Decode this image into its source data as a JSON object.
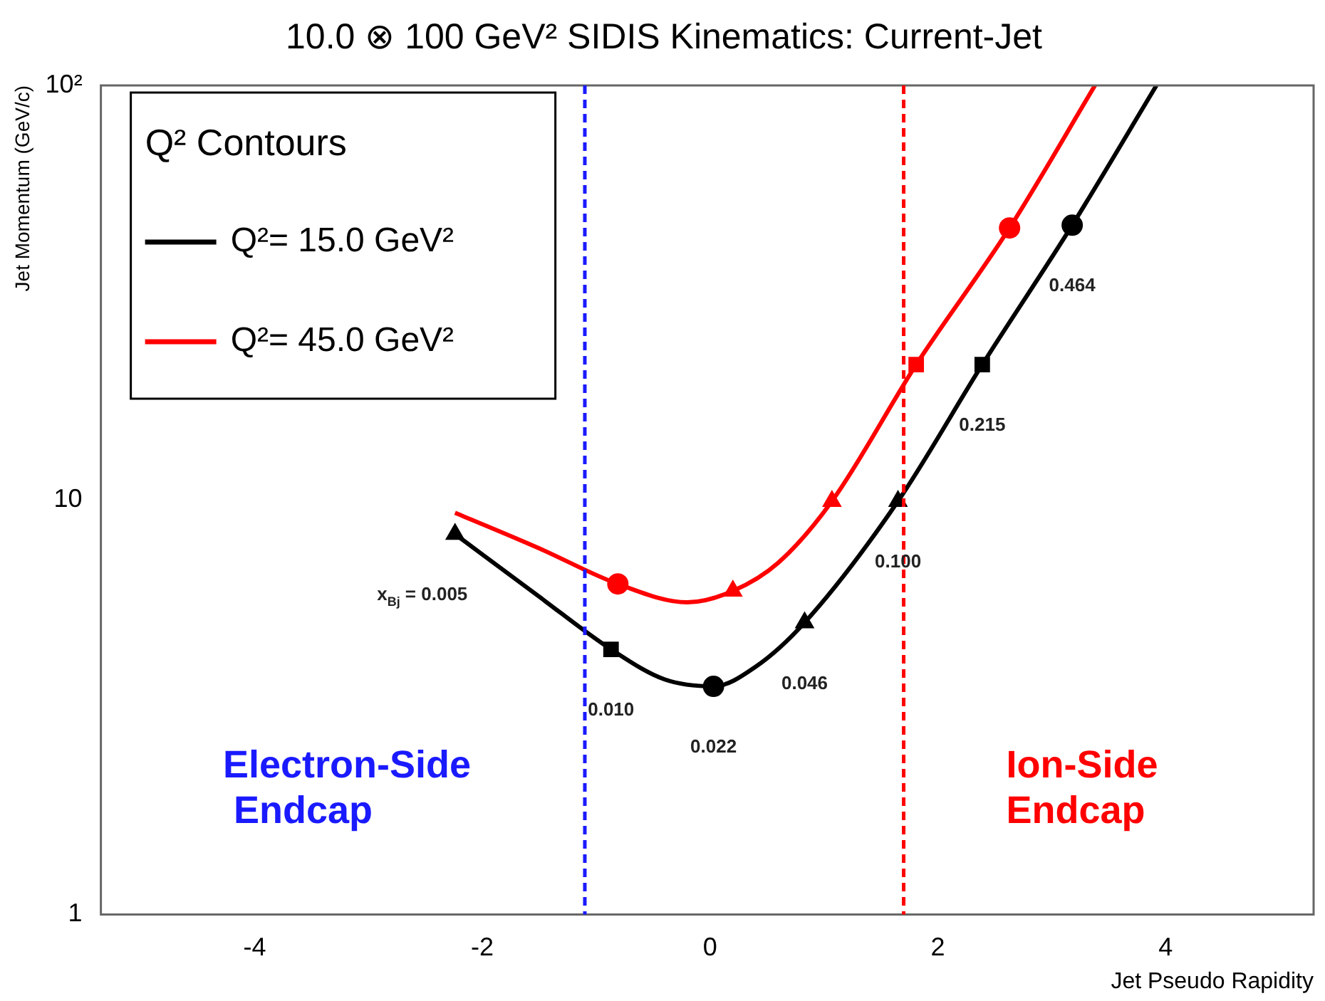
{
  "chart_data": {
    "type": "line",
    "title": "10.0 ⊗ 100 GeV² SIDIS Kinematics: Current-Jet",
    "xlabel": "Jet Pseudo Rapidity",
    "ylabel": "Jet Momentum (GeV/c)",
    "legend_title": "Q² Contours",
    "legend": "top left",
    "grid": false,
    "log": "y",
    "xlim": [
      -5.35,
      5.3
    ],
    "xticks": [
      -4,
      -2,
      0,
      2,
      4
    ],
    "ylim": [
      1,
      100
    ],
    "yticks": [
      1,
      10,
      {
        "value": 100,
        "label": "10²"
      }
    ],
    "series": [
      {
        "name": "Q²= 15.0 GeV²",
        "marker": "none",
        "color": "#000000",
        "x": [
          -2.24,
          -1.5,
          -0.87,
          -0.4,
          0.03,
          0.4,
          0.83,
          1.65,
          2.39,
          3.18,
          3.92
        ],
        "values": [
          8.27,
          5.84,
          4.36,
          3.69,
          3.55,
          3.96,
          5.06,
          9.93,
          21.2,
          46,
          100
        ]
      },
      {
        "name": "Q²= 45.0 GeV²",
        "marker": "none",
        "color": "#ff0000",
        "x": [
          -2.24,
          -1.5,
          -0.81,
          -0.2,
          0.2,
          0.6,
          1.07,
          1.81,
          2.63,
          3.38
        ],
        "values": [
          9.31,
          7.64,
          6.27,
          5.66,
          6.03,
          7.06,
          9.93,
          21.2,
          45.3,
          100
        ]
      },
      {
        "type": "scatter",
        "marker": "triangle",
        "colors": [
          "#000000"
        ],
        "x": [
          -2.24
        ],
        "values": [
          8.27
        ]
      },
      {
        "type": "scatter",
        "marker": "square",
        "colors": [
          "#000000"
        ],
        "x": [
          -0.87
        ],
        "values": [
          4.36
        ]
      },
      {
        "type": "scatter",
        "marker": "circle",
        "colors": [
          "#000000",
          "#ff0000"
        ],
        "x": [
          0.03,
          -0.81
        ],
        "values": [
          3.55,
          6.27
        ]
      },
      {
        "type": "scatter",
        "marker": "triangle",
        "colors": [
          "#000000",
          "#ff0000"
        ],
        "x": [
          0.83,
          0.2
        ],
        "values": [
          5.06,
          6.03
        ]
      },
      {
        "type": "scatter",
        "marker": "triangle",
        "colors": [
          "#000000",
          "#ff0000"
        ],
        "x": [
          1.65,
          1.07
        ],
        "values": [
          9.93,
          9.93
        ]
      },
      {
        "type": "scatter",
        "marker": "square",
        "colors": [
          "#000000",
          "#ff0000"
        ],
        "x": [
          2.39,
          1.81
        ],
        "values": [
          21.2,
          21.2
        ]
      },
      {
        "type": "scatter",
        "marker": "circle",
        "colors": [
          "#000000",
          "#ff0000"
        ],
        "x": [
          3.18,
          2.63
        ],
        "values": [
          46,
          45.3
        ]
      }
    ],
    "ref_lines": [
      {
        "axis": "x",
        "value": -1.1,
        "label": "Electron-Side\n Endcap",
        "color": "#1a1aff",
        "line_style": "dashed"
      },
      {
        "axis": "x",
        "value": 1.7,
        "label": "Ion-Side\nEndcap",
        "color": "#ff0000",
        "line_style": "dashed"
      }
    ],
    "annotations": [
      {
        "text": "x$_{Bj}$ = 0.005",
        "x": -2.24,
        "y": 8.27
      },
      {
        "text": "0.010",
        "x": -0.87,
        "y": 4.36
      },
      {
        "text": "0.022",
        "x": 0.03,
        "y": 3.55
      },
      {
        "text": "0.046",
        "x": 0.83,
        "y": 5.06
      },
      {
        "text": "0.100",
        "x": 1.65,
        "y": 9.93
      },
      {
        "text": "0.215",
        "x": 2.39,
        "y": 21.2
      },
      {
        "text": "0.464",
        "x": 3.18,
        "y": 46
      }
    ]
  }
}
